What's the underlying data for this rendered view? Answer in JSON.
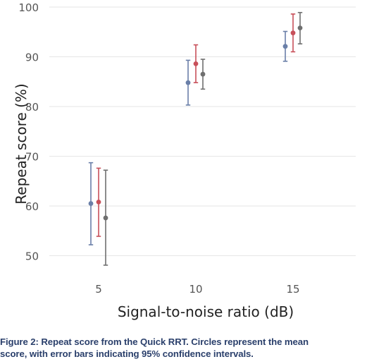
{
  "chart_data": {
    "type": "scatter",
    "xlabel": "Signal-to-noise ratio (dB)",
    "ylabel": "Repeat score (%)",
    "x_categories": [
      5,
      10,
      15
    ],
    "x_ticks": [
      "5",
      "10",
      "15"
    ],
    "y_ticks": [
      "50",
      "60",
      "70",
      "80",
      "90",
      "100"
    ],
    "ylim": [
      45,
      100
    ],
    "grid": "horizontal",
    "legend": "none",
    "series": [
      {
        "color": "#6a7fa8",
        "points": [
          {
            "x": 5,
            "y": 60.5,
            "lower": 52.2,
            "upper": 68.7
          },
          {
            "x": 10,
            "y": 84.8,
            "lower": 80.3,
            "upper": 89.3
          },
          {
            "x": 15,
            "y": 92.1,
            "lower": 89.1,
            "upper": 95.1
          }
        ]
      },
      {
        "color": "#c8505a",
        "points": [
          {
            "x": 5,
            "y": 60.8,
            "lower": 53.9,
            "upper": 67.6
          },
          {
            "x": 10,
            "y": 88.6,
            "lower": 84.8,
            "upper": 92.4
          },
          {
            "x": 15,
            "y": 94.8,
            "lower": 91.0,
            "upper": 98.6
          }
        ]
      },
      {
        "color": "#6f6f6f",
        "points": [
          {
            "x": 5,
            "y": 57.6,
            "lower": 48.1,
            "upper": 67.2
          },
          {
            "x": 10,
            "y": 86.5,
            "lower": 83.5,
            "upper": 89.5
          },
          {
            "x": 15,
            "y": 95.8,
            "lower": 92.6,
            "upper": 98.9
          }
        ]
      }
    ]
  },
  "caption": {
    "line1": "Figure 2: Repeat score from the Quick RRT. Circles represent the mean",
    "line2": "score, with error bars indicating 95% confidence intervals."
  }
}
